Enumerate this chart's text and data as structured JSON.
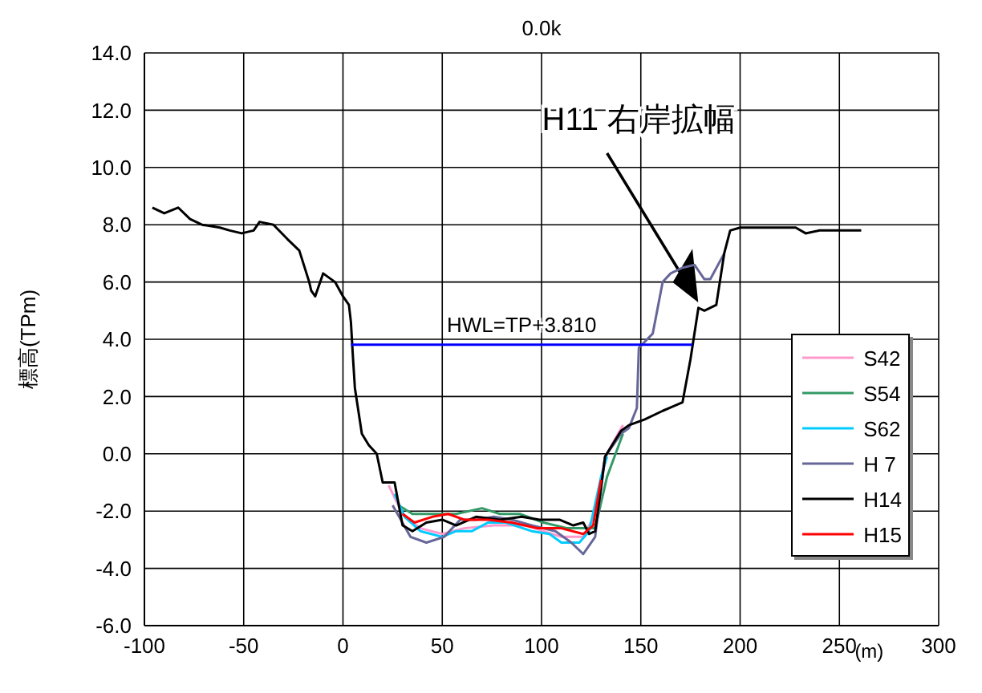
{
  "chart_data": {
    "type": "line",
    "title": "0.0k",
    "xlabel": "(m)",
    "ylabel": "標高(TPm)",
    "annotations": [
      {
        "text": "H11 右岸拡幅",
        "x": 178,
        "y": 5.4
      },
      {
        "text": "HWL=TP+3.810",
        "x": 90,
        "y": 3.81
      }
    ],
    "xlim": [
      -100,
      300
    ],
    "xticks": [
      -100,
      -50,
      0,
      50,
      100,
      150,
      200,
      250,
      300
    ],
    "ylim": [
      -6,
      14
    ],
    "yticks": [
      {
        "value": -6,
        "label": "-6.0"
      },
      {
        "value": -4,
        "label": "-4.0"
      },
      {
        "value": -2,
        "label": "-2.0"
      },
      {
        "value": 0,
        "label": "0.0"
      },
      {
        "value": 2,
        "label": "2.0"
      },
      {
        "value": 4,
        "label": "4.0"
      },
      {
        "value": 6,
        "label": "6.0"
      },
      {
        "value": 8,
        "label": "8.0"
      },
      {
        "value": 10,
        "label": "10.0"
      },
      {
        "value": 12,
        "label": "12.0"
      },
      {
        "value": 14,
        "label": "14.0"
      }
    ],
    "grid": true,
    "legend": "bottom right",
    "marker": "none",
    "line_style": "solid",
    "series": [
      {
        "name": "S42",
        "color": "#ff99cc",
        "x": [
          23,
          30,
          39,
          50,
          61,
          76,
          92,
          101,
          110,
          121,
          127,
          132,
          141
        ],
        "values": [
          -1.1,
          -2.1,
          -2.6,
          -2.8,
          -2.6,
          -2.5,
          -2.5,
          -2.7,
          -2.9,
          -2.9,
          -2.1,
          -0.1,
          1.0
        ]
      },
      {
        "name": "S54",
        "color": "#339966",
        "x": [
          28,
          35,
          45,
          57,
          70,
          79,
          89,
          101,
          113,
          127,
          133,
          141
        ],
        "values": [
          -1.8,
          -2.1,
          -2.1,
          -2.1,
          -1.9,
          -2.1,
          -2.1,
          -2.4,
          -2.6,
          -2.6,
          -0.8,
          0.7
        ]
      },
      {
        "name": "S62",
        "color": "#00ccff",
        "x": [
          26,
          31,
          39,
          50,
          57,
          65,
          73,
          82,
          95,
          104,
          110,
          119,
          124,
          130,
          133
        ],
        "values": [
          -1.4,
          -2.2,
          -2.7,
          -2.9,
          -2.7,
          -2.7,
          -2.4,
          -2.4,
          -2.7,
          -2.8,
          -3.1,
          -3.1,
          -2.7,
          -0.8,
          -0.1
        ]
      },
      {
        "name": "H 7",
        "color": "#666699",
        "x": [
          25,
          34,
          42,
          51,
          59,
          67,
          76,
          85,
          95,
          107,
          115,
          121,
          127,
          132,
          140,
          144,
          148,
          149,
          156,
          161,
          165,
          171,
          177,
          182,
          185,
          192
        ],
        "values": [
          -1.8,
          -2.9,
          -3.1,
          -2.9,
          -2.3,
          -2.3,
          -2.2,
          -2.3,
          -2.5,
          -2.7,
          -3.1,
          -3.5,
          -2.9,
          -0.1,
          0.7,
          0.9,
          1.6,
          3.7,
          4.2,
          6.0,
          6.3,
          6.5,
          6.6,
          6.1,
          6.1,
          7.0
        ]
      },
      {
        "name": "H14",
        "color": "#000000",
        "x": [
          -96,
          -90,
          -83,
          -77,
          -71,
          -62,
          -57,
          -51,
          -45,
          -42,
          -35,
          -28,
          -22,
          -17,
          -16,
          -14,
          -10,
          -4,
          0,
          3,
          4,
          5,
          6,
          9.5,
          13,
          17,
          20,
          26,
          30,
          35,
          42,
          50,
          57,
          67,
          79,
          90,
          99,
          109,
          116,
          121,
          124,
          127,
          132,
          140,
          144,
          152,
          161,
          171,
          175,
          179,
          182,
          188,
          192,
          195,
          200,
          212,
          228,
          233,
          240,
          261
        ],
        "values": [
          8.6,
          8.4,
          8.6,
          8.2,
          8.0,
          7.9,
          7.8,
          7.7,
          7.8,
          8.1,
          8.0,
          7.5,
          7.1,
          6.0,
          5.7,
          5.5,
          6.3,
          6.0,
          5.5,
          5.2,
          4.6,
          3.4,
          2.3,
          0.7,
          0.3,
          0.0,
          -1.0,
          -1.0,
          -2.5,
          -2.7,
          -2.4,
          -2.3,
          -2.5,
          -2.2,
          -2.3,
          -2.2,
          -2.3,
          -2.3,
          -2.5,
          -2.4,
          -2.8,
          -2.7,
          -0.1,
          0.8,
          1.0,
          1.2,
          1.5,
          1.8,
          3.3,
          5.1,
          5.0,
          5.2,
          7.0,
          7.8,
          7.9,
          7.9,
          7.9,
          7.7,
          7.8,
          7.8
        ]
      },
      {
        "name": "H15",
        "color": "#ff0000",
        "x": [
          30,
          36,
          45,
          53,
          61,
          73,
          85,
          98,
          110,
          121,
          126,
          130
        ],
        "values": [
          -2.1,
          -2.4,
          -2.2,
          -2.1,
          -2.3,
          -2.3,
          -2.4,
          -2.6,
          -2.6,
          -2.8,
          -2.5,
          -0.9
        ]
      },
      {
        "color": "#0000ff",
        "x": [
          4,
          176
        ],
        "values": [
          3.81,
          3.81
        ]
      }
    ]
  }
}
